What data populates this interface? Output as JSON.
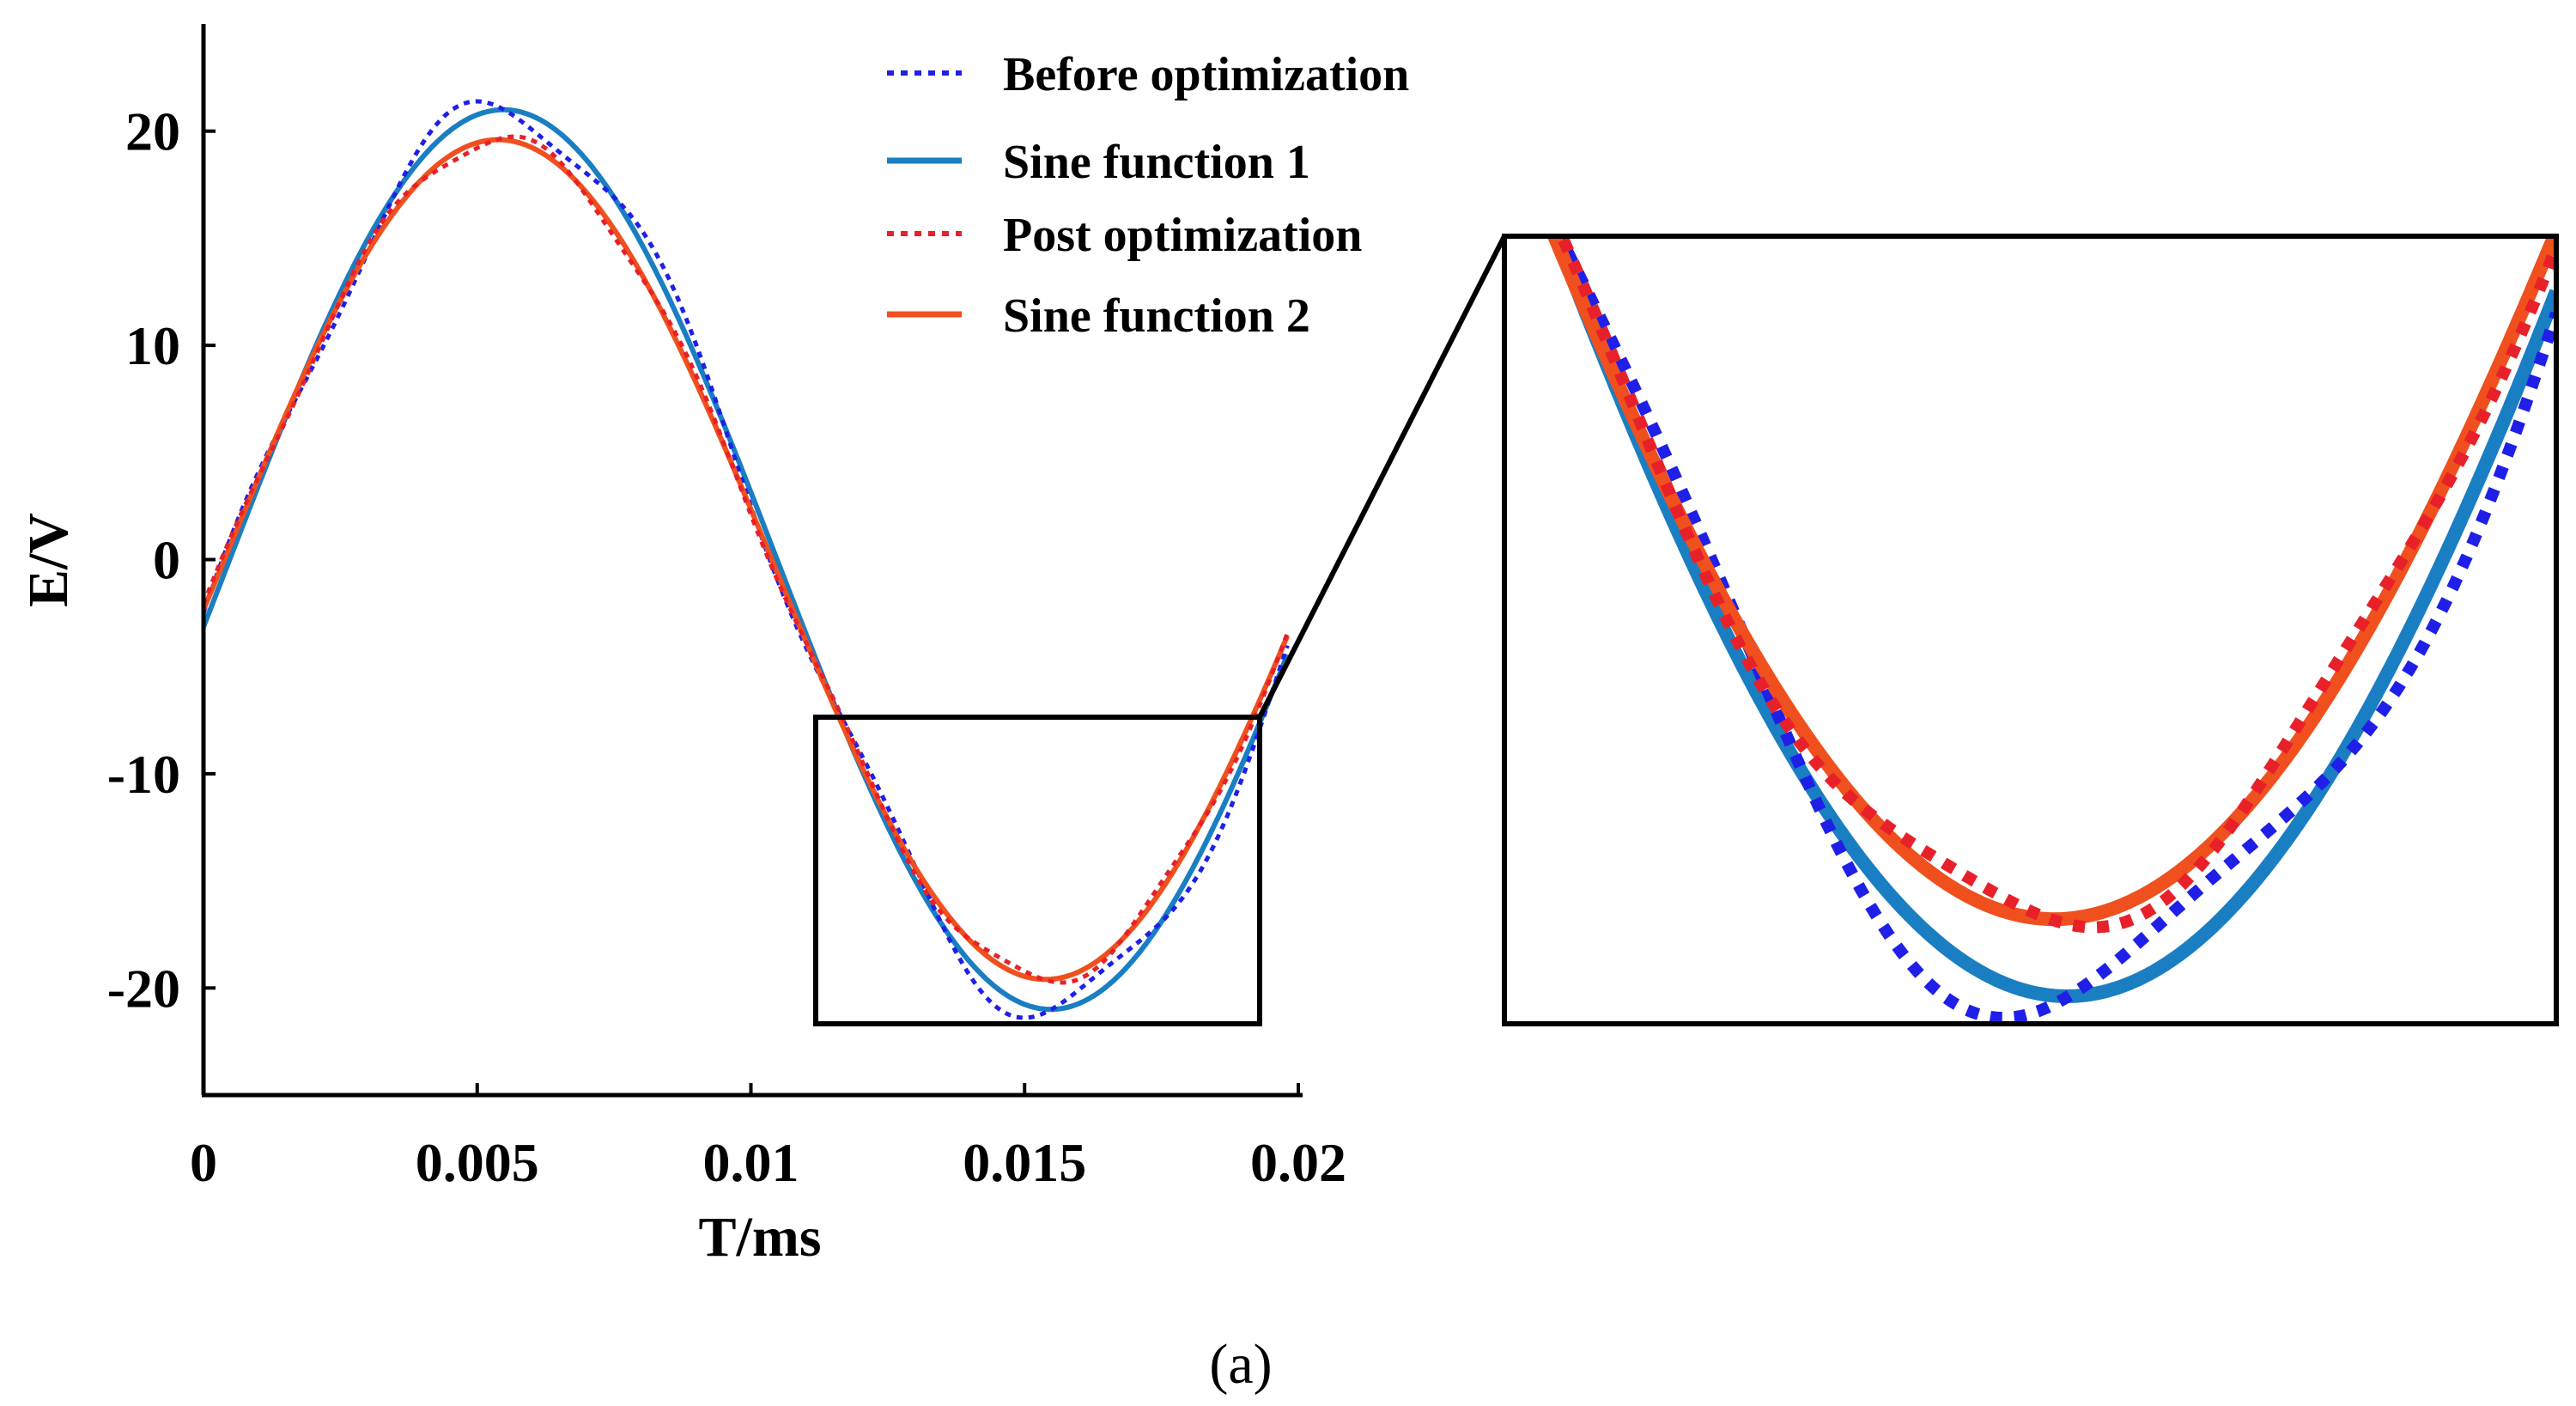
{
  "chart_data": {
    "type": "line",
    "title": "",
    "xlabel": "T/ms",
    "ylabel": "E/V",
    "xlim": [
      0,
      0.02
    ],
    "ylim": [
      -25,
      25
    ],
    "x_ticks": [
      0,
      0.005,
      0.01,
      0.015,
      0.02
    ],
    "x_tick_labels": [
      "0",
      "0.005",
      "0.01",
      "0.015",
      "0.02"
    ],
    "y_ticks": [
      20,
      10,
      0,
      -10,
      -20
    ],
    "y_tick_labels": [
      "20",
      "10",
      "0",
      "-10",
      "-20"
    ],
    "grid": false,
    "legend_position": "top",
    "panel_label": "(a)",
    "series": [
      {
        "name": "Before optimization",
        "style": "dotted",
        "color": "#1f1fe8",
        "amplitude": 21.0,
        "frequency_hz": 50,
        "phase_offset": -0.15,
        "ripple_amplitude": 0.9,
        "ripple_harmonic": 5
      },
      {
        "name": "Sine function 1",
        "style": "solid",
        "color": "#1a7ec2",
        "amplitude": 21.0,
        "frequency_hz": 50,
        "phase_offset": -0.15,
        "ripple_amplitude": 0,
        "ripple_harmonic": 5
      },
      {
        "name": "Post optimization",
        "style": "dotted",
        "color": "#e8202a",
        "amplitude": 19.6,
        "frequency_hz": 50,
        "phase_offset": -0.12,
        "ripple_amplitude": 0.35,
        "ripple_harmonic": 7
      },
      {
        "name": "Sine function 2",
        "style": "solid",
        "color": "#f0501e",
        "amplitude": 19.6,
        "frequency_hz": 50,
        "phase_offset": -0.12,
        "ripple_amplitude": 0,
        "ripple_harmonic": 7
      }
    ],
    "zoom_region": {
      "x_range": [
        0.0112,
        0.0192
      ],
      "y_range": [
        -21.5,
        -7.2
      ]
    }
  }
}
